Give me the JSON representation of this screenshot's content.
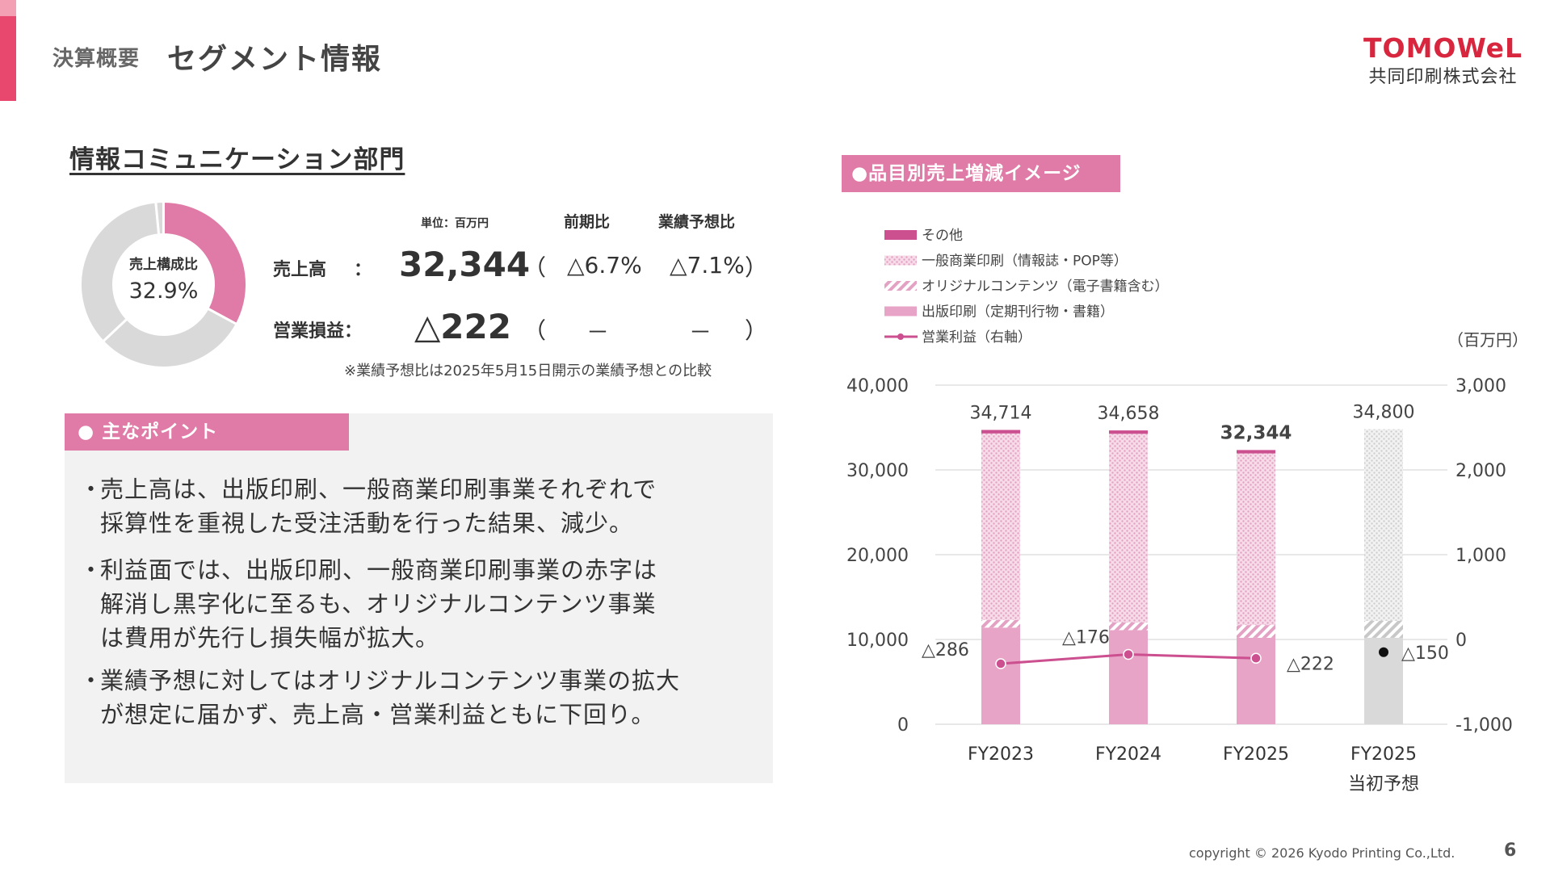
{
  "header": {
    "category": "決算概要",
    "title": "セグメント情報"
  },
  "logo": {
    "main": "TOMOWeL",
    "sub": "共同印刷株式会社"
  },
  "section": {
    "title": "情報コミュニケーション部門"
  },
  "donut": {
    "label": "売上構成比",
    "value": "32.9%",
    "share": 0.329
  },
  "summary": {
    "unit": "単位：百万円",
    "col_prev": "前期比",
    "col_forecast": "業績予想比",
    "sales_label": "売上高",
    "sales_colon": "：",
    "sales_value": "32,344",
    "sales_prev": "△6.7%",
    "sales_forecast": "△7.1%",
    "op_label": "営業損益：",
    "op_value": "△222",
    "op_prev": "－",
    "op_forecast": "－",
    "paren_open": "（",
    "paren_close": "）",
    "note": "※業績予想比は2025年5月15日開示の業績予想との比較"
  },
  "points": {
    "title": "● 主なポイント",
    "bullet": "・",
    "items": [
      {
        "line1": "売上高は、出版印刷、一般商業印刷事業それぞれで",
        "line2": "採算性を重視した受注活動を行った結果、減少。",
        "line3": ""
      },
      {
        "line1": "利益面では、出版印刷、一般商業印刷事業の赤字は",
        "line2": "解消し黒字化に至るも、オリジナルコンテンツ事業",
        "line3": "は費用が先行し損失幅が拡大。"
      },
      {
        "line1": "業績予想に対してはオリジナルコンテンツ事業の拡大",
        "line2": "が想定に届かず、売上高・営業利益ともに下回り。",
        "line3": ""
      }
    ]
  },
  "chart_tab": "●品目別売上増減イメージ",
  "chart_data": {
    "type": "bar",
    "categories": [
      "FY2023",
      "FY2024",
      "FY2025",
      "FY2025"
    ],
    "category_sub": [
      "",
      "",
      "",
      "当初予想"
    ],
    "unit_label": "（百万円）",
    "ylim": [
      0,
      40000
    ],
    "y_ticks": [
      "40,000",
      "30,000",
      "20,000",
      "10,000",
      "0"
    ],
    "y2lim": [
      -1000,
      3000
    ],
    "y2_ticks": [
      "3,000",
      "2,000",
      "1,000",
      "0",
      "-1,000"
    ],
    "series": [
      {
        "name": "出版印刷（定期刊行物・書籍）",
        "color": "#e8a4c7",
        "values": [
          11400,
          11100,
          10200,
          10200
        ]
      },
      {
        "name": "オリジナルコンテンツ（電子書籍含む）",
        "color": "#eab0cc",
        "values": [
          900,
          900,
          1500,
          2000
        ]
      },
      {
        "name": "一般商業印刷（情報誌・POP等）",
        "color": "#f0c8dd",
        "values": [
          22000,
          22258,
          20244,
          22600
        ]
      },
      {
        "name": "その他",
        "color": "#d45a98",
        "values": [
          414,
          400,
          400,
          0
        ]
      }
    ],
    "forecast_bar_color": "#d9d9d9",
    "totals": [
      "34,714",
      "34,658",
      "32,344",
      "34,800"
    ],
    "operating_income": {
      "name": "営業利益（右軸）",
      "color": "#cc4f90",
      "values": [
        -286,
        -176,
        -222,
        -150
      ],
      "labels": [
        "△286",
        "△176",
        "△222",
        "△150"
      ]
    },
    "legend_order": [
      "その他",
      "一般商業印刷（情報誌・POP等）",
      "オリジナルコンテンツ（電子書籍含む）",
      "出版印刷（定期刊行物・書籍）",
      "営業利益（右軸）"
    ]
  },
  "footer": {
    "copyright": "copyright © 2026 Kyodo Printing Co.,Ltd.",
    "page": "6"
  }
}
